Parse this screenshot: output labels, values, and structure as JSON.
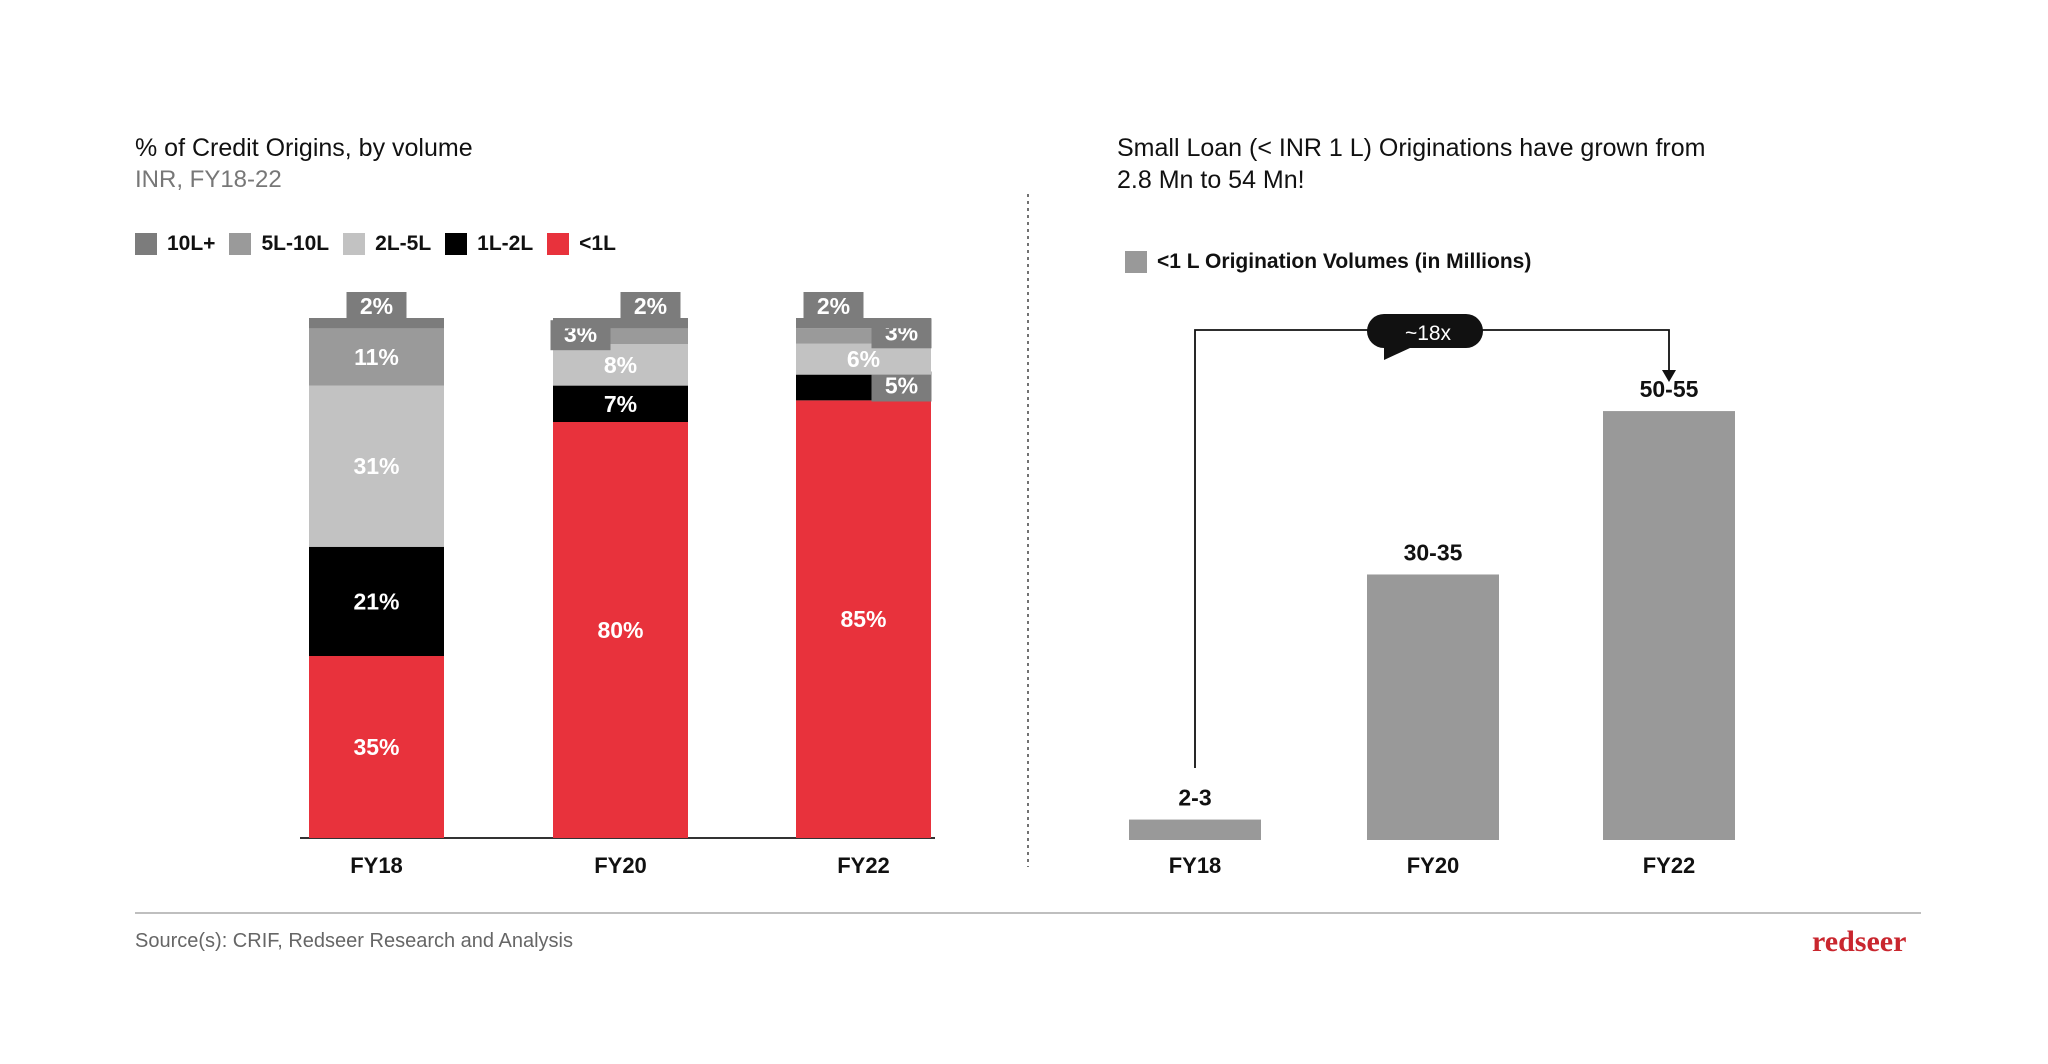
{
  "left": {
    "title": "% of Credit Origins, by volume",
    "subtitle": "INR, FY18-22"
  },
  "right": {
    "title_line1": "Small Loan (< INR 1 L) Originations have grown from",
    "title_line2": "2.8 Mn to 54 Mn!"
  },
  "source": "Source(s): CRIF, Redseer Research and Analysis",
  "logo": "redseer",
  "chart_data": [
    {
      "type": "bar",
      "stacked": true,
      "title": "% of Credit Origins, by volume",
      "subtitle": "INR, FY18-22",
      "categories": [
        "FY18",
        "FY20",
        "FY22"
      ],
      "series": [
        {
          "name": "<1L",
          "color": "#e8323c",
          "values": [
            35,
            80,
            85
          ]
        },
        {
          "name": "1L-2L",
          "color": "#000000",
          "values": [
            21,
            7,
            5
          ]
        },
        {
          "name": "2L-5L",
          "color": "#c2c2c2",
          "values": [
            31,
            8,
            6
          ]
        },
        {
          "name": "5L-10L",
          "color": "#9a9a9a",
          "values": [
            11,
            3,
            3
          ]
        },
        {
          "name": "10L+",
          "color": "#7c7c7c",
          "values": [
            2,
            2,
            2
          ]
        }
      ],
      "legend": [
        "10L+",
        "5L-10L",
        "2L-5L",
        "1L-2L",
        "<1L"
      ],
      "legend_position": "top-left",
      "unit": "%"
    },
    {
      "type": "bar",
      "title": "Small Loan (< INR 1 L) Originations have grown from 2.8 Mn to 54 Mn!",
      "legend": "<1 L Origination Volumes (in Millions)",
      "color": "#999999",
      "categories": [
        "FY18",
        "FY20",
        "FY22"
      ],
      "labels": [
        "2-3",
        "30-35",
        "50-55"
      ],
      "values": [
        2.5,
        32.5,
        52.5
      ],
      "annotation": "~18x"
    }
  ]
}
